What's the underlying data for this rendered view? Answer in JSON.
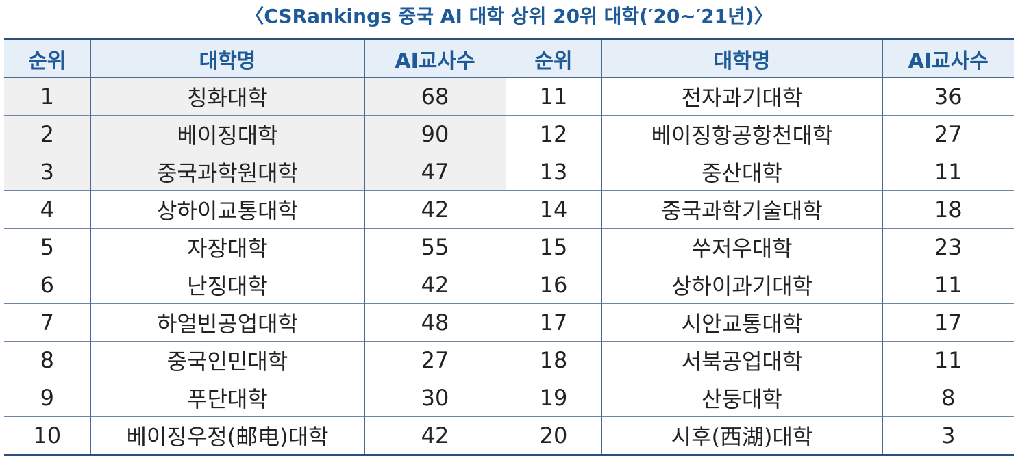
{
  "title": "〈CSRankings 중국 AI 대학 상위 20위 대학(′20~′21년)〉",
  "headers": [
    "순위",
    "대학명",
    "AI교사수",
    "순위",
    "대학명",
    "AI교사수"
  ],
  "rows": [
    {
      "rank_a": "1",
      "name_a": "칭화대학",
      "count_a": "68",
      "rank_b": "11",
      "name_b": "전자과기대학",
      "count_b": "36"
    },
    {
      "rank_a": "2",
      "name_a": "베이징대학",
      "count_a": "90",
      "rank_b": "12",
      "name_b": "베이징항공항천대학",
      "count_b": "27"
    },
    {
      "rank_a": "3",
      "name_a": "중국과학원대학",
      "count_a": "47",
      "rank_b": "13",
      "name_b": "중산대학",
      "count_b": "11"
    },
    {
      "rank_a": "4",
      "name_a": "상하이교통대학",
      "count_a": "42",
      "rank_b": "14",
      "name_b": "중국과학기술대학",
      "count_b": "18"
    },
    {
      "rank_a": "5",
      "name_a": "자장대학",
      "count_a": "55",
      "rank_b": "15",
      "name_b": "쑤저우대학",
      "count_b": "23"
    },
    {
      "rank_a": "6",
      "name_a": "난징대학",
      "count_a": "42",
      "rank_b": "16",
      "name_b": "상하이과기대학",
      "count_b": "11"
    },
    {
      "rank_a": "7",
      "name_a": "하얼빈공업대학",
      "count_a": "48",
      "rank_b": "17",
      "name_b": "시안교통대학",
      "count_b": "17"
    },
    {
      "rank_a": "8",
      "name_a": "중국인민대학",
      "count_a": "27",
      "rank_b": "18",
      "name_b": "서북공업대학",
      "count_b": "11"
    },
    {
      "rank_a": "9",
      "name_a": "푸단대학",
      "count_a": "30",
      "rank_b": "19",
      "name_b": "산둥대학",
      "count_b": "8"
    },
    {
      "rank_a": "10",
      "name_a": "베이징우정(邮电)대학",
      "count_a": "42",
      "rank_b": "20",
      "name_b": "시후(西湖)대학",
      "count_b": "3"
    }
  ],
  "colors": {
    "title": "#1f5a98",
    "header_bg": "#e6eef8",
    "header_text": "#1f5a98",
    "rule": "#2d4f7c",
    "shaded_cell": "#f0f0f0"
  }
}
